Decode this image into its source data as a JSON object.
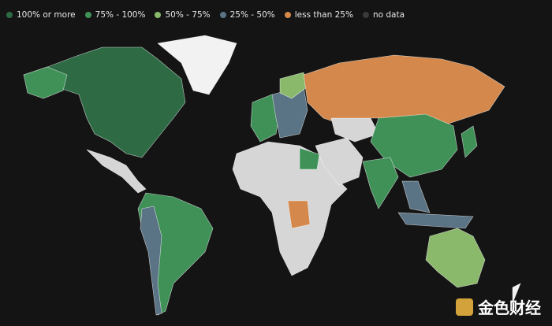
{
  "legend": {
    "items": [
      {
        "label": "100% or more",
        "color": "#2e6b45"
      },
      {
        "label": "75% - 100%",
        "color": "#3f9157"
      },
      {
        "label": "50% - 75%",
        "color": "#8ab96b"
      },
      {
        "label": "25% - 50%",
        "color": "#5a7385"
      },
      {
        "label": "less than 25%",
        "color": "#d4884b"
      },
      {
        "label": "no data",
        "color": "#3a3a3a"
      }
    ]
  },
  "watermark": {
    "text": "金色财经"
  }
}
